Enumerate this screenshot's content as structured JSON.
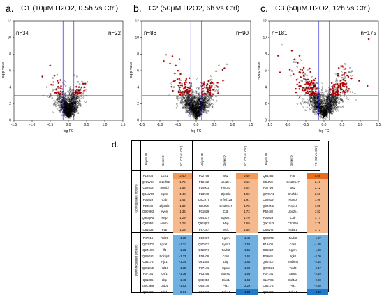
{
  "panels": [
    {
      "letter": "a.",
      "title": "C1 (10μM H2O2, 0.5h vs Ctrl)",
      "n_down": "n=34",
      "n_up": "n=22"
    },
    {
      "letter": "b.",
      "title": "C2 (50μM H2O2, 6h vs Ctrl)",
      "n_down": "n=86",
      "n_up": "n=90"
    },
    {
      "letter": "c.",
      "title": "C3 (50μM H2O2, 12h vs Ctrl)",
      "n_down": "n=181",
      "n_up": "n=175"
    }
  ],
  "chart_data": [
    {
      "type": "scatter",
      "title": "C1 (10μM H2O2, 0.5h vs Ctrl)",
      "xlabel": "log FC",
      "ylabel": "-log p value",
      "xlim": [
        -1.5,
        1.5
      ],
      "ylim": [
        0,
        12
      ],
      "x_ticks": [
        "-1.5",
        "-1.0",
        "-0.5",
        "0.0",
        "0.5",
        "1.0",
        "1.5"
      ],
      "y_ticks": [
        "0",
        "2",
        "4",
        "6",
        "8",
        "10",
        "12"
      ],
      "fc_cutoffs": [
        -0.15,
        0.15
      ],
      "p_cutoff": 3
    },
    {
      "type": "scatter",
      "title": "C2 (50μM H2O2, 6h vs Ctrl)",
      "xlabel": "log FC",
      "ylabel": "-log p value",
      "xlim": [
        -1.5,
        1.5
      ],
      "ylim": [
        0,
        12
      ],
      "x_ticks": [
        "-1.5",
        "-1.0",
        "-0.5",
        "0.0",
        "0.5",
        "1.0",
        "1.5"
      ],
      "y_ticks": [
        "0",
        "2",
        "4",
        "6",
        "8",
        "10",
        "12"
      ],
      "fc_cutoffs": [
        -0.15,
        0.15
      ],
      "p_cutoff": 3
    },
    {
      "type": "scatter",
      "title": "C3 (50μM H2O2, 12h vs Ctrl)",
      "xlabel": "log FC",
      "ylabel": "-log p value",
      "xlim": [
        -1.5,
        1.5
      ],
      "ylim": [
        0,
        12
      ],
      "x_ticks": [
        "-1.5",
        "-1.0",
        "-0.5",
        "0.0",
        "0.5",
        "1.0",
        "1.5"
      ],
      "y_ticks": [
        "0",
        "2",
        "4",
        "6",
        "8",
        "10",
        "12"
      ],
      "fc_cutoffs": [
        -0.15,
        0.15
      ],
      "p_cutoff": 3
    },
    {
      "type": "table",
      "label": "d.",
      "headers": [
        "Uniprot ID",
        "Gene ID",
        "FC (C1 vs. Ctrl)",
        "Uniprot ID",
        "Gene ID",
        "FC (C2 vs. Ctrl)",
        "Uniprot ID",
        "Gene ID",
        "FC (C3 vs. Ctrl)"
      ],
      "groups": [
        "Up-regulated proteins",
        "Down-regulated proteins"
      ],
      "up": [
        [
          "P18406",
          "Ccn1",
          "2.40",
          "P02798",
          "Mt2",
          "2.49",
          "Q64265",
          "Fau",
          "5.58"
        ],
        [
          "Q9CWU4",
          "C1orf52",
          "1.75",
          "P52482",
          "Ube2e1",
          "2.16",
          "B8IJN0",
          "Gm20547",
          "2.19"
        ],
        [
          "O08919",
          "Numbl",
          "1.52",
          "P14901",
          "Hmox1",
          "2.04",
          "P02798",
          "Mt2",
          "2.12"
        ],
        [
          "Q6AW69",
          "Cgr41",
          "1.48",
          "P23949",
          "Zfp36l2",
          "1.96",
          "Q8VEA4",
          "Chchd4",
          "2.03"
        ],
        [
          "P01029",
          "C4b",
          "1.44",
          "Q9CR75",
          "Tnfrsf12a",
          "1.91",
          "O08919",
          "Numbl",
          "1.96"
        ],
        [
          "P23949",
          "Zfp36l2",
          "1.39",
          "B8IJN0",
          "Gm20547",
          "1.78",
          "Q8R3N1",
          "Nop14",
          "1.85"
        ],
        [
          "Q9D9K3",
          "Aven",
          "1.36",
          "P01029",
          "C4b",
          "1.73",
          "P52482",
          "Ube2e1",
          "1.82"
        ],
        [
          "Q9EQK5",
          "Mvp",
          "1.29",
          "Q64337",
          "Sqstm1",
          "1.70",
          "P01029",
          "C4b",
          "1.77"
        ],
        [
          "Q62956",
          "Ankib1",
          "1.28",
          "Q9EQK5",
          "Mvp",
          "1.59",
          "Q9CXL3",
          "C7orf50",
          "1.75"
        ],
        [
          "Q61838",
          "Pzp",
          "1.29",
          "P97287",
          "Mcl1",
          "1.58",
          "Q5SVI5",
          "Pqbp1",
          "1.73"
        ]
      ],
      "down": [
        [
          "P47915",
          "Rpl29",
          "-1.30",
          "O89017",
          "Lgmn",
          "-1.49",
          "Q920R9",
          "Fads2",
          "-1.87"
        ],
        [
          "Q3TFD2",
          "Lpcat1",
          "-1.31",
          "Q9D8Y1",
          "Syvn1",
          "-1.52",
          "P18406",
          "Ccn1",
          "-1.88"
        ],
        [
          "Q9Z1X4",
          "Ilf3",
          "-1.33",
          "Q920R9",
          "Fads2",
          "-1.55",
          "O89017",
          "Lgmn",
          "-1.98"
        ],
        [
          "Q8BG81",
          "Poldip3",
          "-1.33",
          "P18406",
          "Ccn1",
          "-1.61",
          "P09041",
          "Pgk2",
          "-2.09"
        ],
        [
          "O55176",
          "Pja1",
          "-1.34",
          "Q61805",
          "Lbp",
          "-1.64",
          "Q9D2C7",
          "Tmbim6",
          "-2.15"
        ],
        [
          "Q80ZM5",
          "H1f10",
          "-1.35",
          "P07141",
          "Sparc",
          "-1.62",
          "Q8VD24",
          "Tcaf3",
          "-2.17"
        ],
        [
          "P07141",
          "Csf1",
          "-1.36",
          "P63166",
          "Sumo1",
          "-1.68",
          "P07141",
          "Sparc",
          "-2.19"
        ],
        [
          "Q61805",
          "Lbp",
          "-1.48",
          "Q8C9B9",
          "Dido1",
          "-1.68",
          "B1AVK5",
          "Col4a6",
          "-2.23"
        ],
        [
          "Q8C9B9",
          "Dido1",
          "-1.53",
          "O55176",
          "Pja1",
          "-2.29",
          "O55176",
          "Pja1",
          "-2.40"
        ],
        [
          "Q61823",
          "Pdcd4",
          "-2.04",
          "Q61823",
          "Pdcd4",
          "-4.24",
          "Q61823",
          "Pdcd4",
          "-4.48"
        ]
      ]
    }
  ],
  "colors": {
    "up_dot": "#c00000",
    "ns_dot": "#000000",
    "fc_line": "#0000ff",
    "p_line": "#ff0000",
    "up_fill": "#f6b98d",
    "up_max": "#e86c1a",
    "down_fill": "#6fb0e0",
    "down_max": "#1f78c8"
  }
}
